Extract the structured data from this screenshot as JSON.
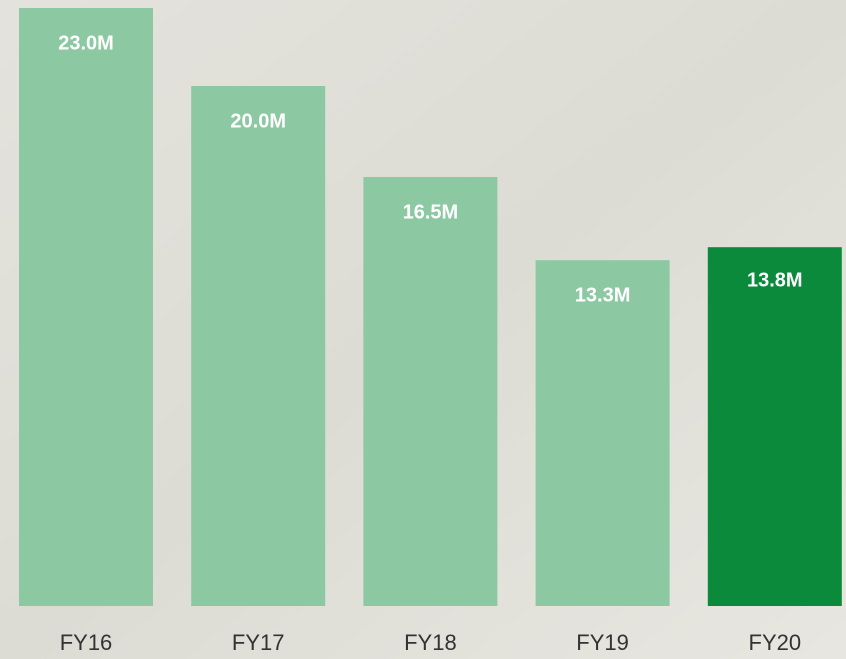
{
  "chart_data": {
    "type": "bar",
    "categories": [
      "FY16",
      "FY17",
      "FY18",
      "FY19",
      "FY20"
    ],
    "values": [
      23.0,
      20.0,
      16.5,
      13.3,
      13.8
    ],
    "value_labels": [
      "23.0M",
      "20.0M",
      "16.5M",
      "13.3M",
      "13.8M"
    ],
    "colors": [
      "#8cc9a2",
      "#8cc9a2",
      "#8cc9a2",
      "#8cc9a2",
      "#0b8a3c"
    ]
  }
}
